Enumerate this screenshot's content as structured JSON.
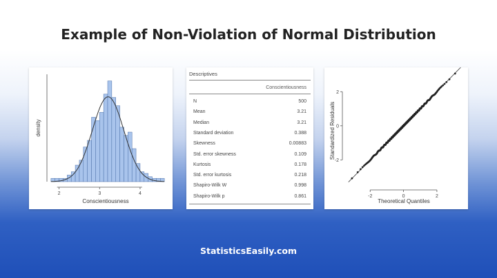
{
  "header": {
    "title": "Example of Non-Violation of Normal Distribution"
  },
  "footer": {
    "site": "StatisticsEasily.com"
  },
  "colors": {
    "bar_fill": "#a9c4ec",
    "bar_stroke": "#4a6fa8",
    "curve": "#333333",
    "point": "#222222"
  },
  "chart_data": [
    {
      "type": "bar",
      "subtype": "histogram-with-density",
      "xlabel": "Conscientiousness",
      "ylabel": "density",
      "xlim": [
        1.7,
        4.7
      ],
      "ylim": [
        0,
        1.3
      ],
      "x_ticks": [
        2,
        3,
        4
      ],
      "bin_width": 0.1,
      "bins": [
        {
          "x0": 1.8,
          "x1": 1.9,
          "density": 0.04
        },
        {
          "x0": 1.9,
          "x1": 2.0,
          "density": 0.04
        },
        {
          "x0": 2.0,
          "x1": 2.1,
          "density": 0.04
        },
        {
          "x0": 2.1,
          "x1": 2.2,
          "density": 0.04
        },
        {
          "x0": 2.2,
          "x1": 2.3,
          "density": 0.08
        },
        {
          "x0": 2.3,
          "x1": 2.4,
          "density": 0.12
        },
        {
          "x0": 2.4,
          "x1": 2.5,
          "density": 0.2
        },
        {
          "x0": 2.5,
          "x1": 2.6,
          "density": 0.26
        },
        {
          "x0": 2.6,
          "x1": 2.7,
          "density": 0.42
        },
        {
          "x0": 2.7,
          "x1": 2.8,
          "density": 0.5
        },
        {
          "x0": 2.8,
          "x1": 2.9,
          "density": 0.78
        },
        {
          "x0": 2.9,
          "x1": 3.0,
          "density": 0.74
        },
        {
          "x0": 3.0,
          "x1": 3.1,
          "density": 0.84
        },
        {
          "x0": 3.1,
          "x1": 3.2,
          "density": 1.06
        },
        {
          "x0": 3.2,
          "x1": 3.3,
          "density": 1.22
        },
        {
          "x0": 3.3,
          "x1": 3.4,
          "density": 1.02
        },
        {
          "x0": 3.4,
          "x1": 3.5,
          "density": 0.92
        },
        {
          "x0": 3.5,
          "x1": 3.6,
          "density": 0.66
        },
        {
          "x0": 3.6,
          "x1": 3.7,
          "density": 0.56
        },
        {
          "x0": 3.7,
          "x1": 3.8,
          "density": 0.6
        },
        {
          "x0": 3.8,
          "x1": 3.9,
          "density": 0.4
        },
        {
          "x0": 3.9,
          "x1": 4.0,
          "density": 0.22
        },
        {
          "x0": 4.0,
          "x1": 4.1,
          "density": 0.12
        },
        {
          "x0": 4.1,
          "x1": 4.2,
          "density": 0.1
        },
        {
          "x0": 4.2,
          "x1": 4.3,
          "density": 0.06
        },
        {
          "x0": 4.3,
          "x1": 4.4,
          "density": 0.04
        },
        {
          "x0": 4.4,
          "x1": 4.5,
          "density": 0.04
        },
        {
          "x0": 4.5,
          "x1": 4.6,
          "density": 0.04
        }
      ],
      "density_curve": {
        "distribution": "normal",
        "mean": 3.21,
        "sd": 0.388
      }
    },
    {
      "type": "table",
      "title": "Descriptives",
      "column_header": "Conscientiousness",
      "rows": [
        {
          "label": "N",
          "value": "500"
        },
        {
          "label": "Mean",
          "value": "3.21"
        },
        {
          "label": "Median",
          "value": "3.21"
        },
        {
          "label": "Standard deviation",
          "value": "0.388"
        },
        {
          "label": "Skewness",
          "value": "0.00883"
        },
        {
          "label": "Std. error skewness",
          "value": "0.109"
        },
        {
          "label": "Kurtosis",
          "value": "0.178"
        },
        {
          "label": "Std. error kurtosis",
          "value": "0.218"
        },
        {
          "label": "Shapiro-Wilk W",
          "value": "0.998"
        },
        {
          "label": "Shapiro-Wilk p",
          "value": "0.861"
        }
      ]
    },
    {
      "type": "scatter",
      "subtype": "qq-plot",
      "xlabel": "Theoretical Quantiles",
      "ylabel": "Standardized Residuals",
      "xlim": [
        -3.5,
        3.7
      ],
      "ylim": [
        -3.6,
        3.1
      ],
      "x_ticks": [
        -2,
        0,
        2
      ],
      "y_ticks": [
        -2,
        0,
        2
      ],
      "reference_line": {
        "slope": 1,
        "intercept": 0
      },
      "n_points": 500
    }
  ]
}
